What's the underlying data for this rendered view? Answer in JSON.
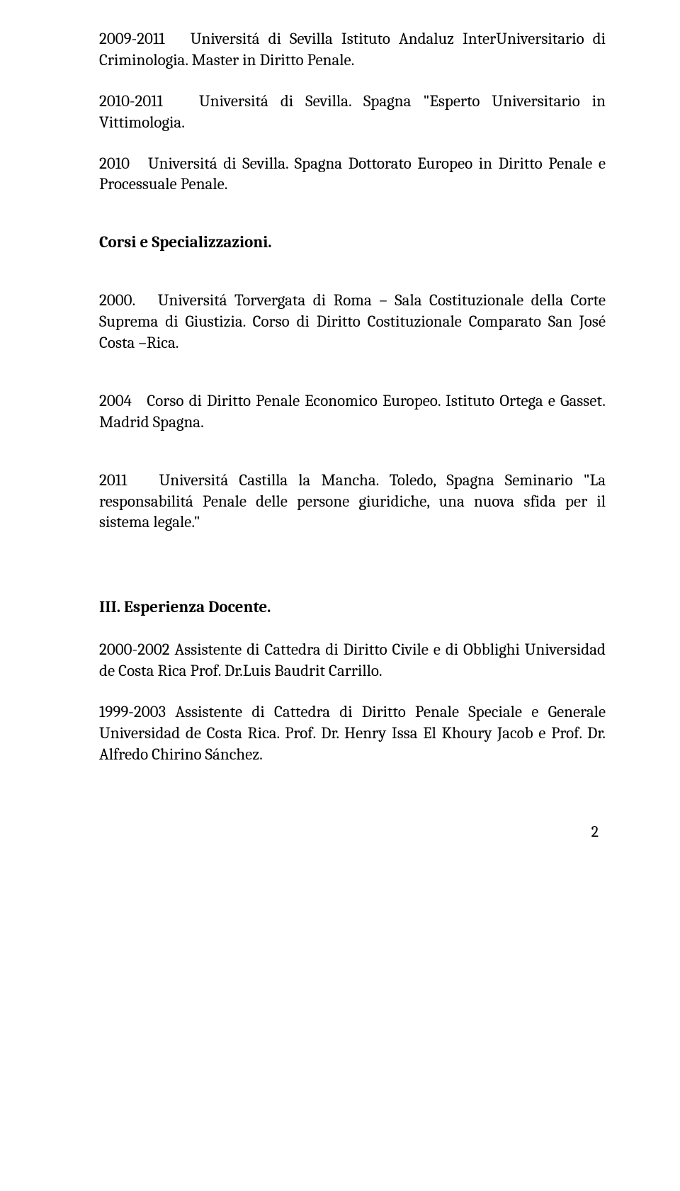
{
  "entries_a": [
    {
      "year": "2009-2011",
      "text": "Universitá di Sevilla Istituto Andaluz InterUniversitario di Criminologia. Master in Diritto Penale."
    },
    {
      "year": "2010-2011",
      "text": "Universitá di Sevilla. Spagna \"Esperto Universitario in Vittimologia."
    },
    {
      "year": "2010",
      "text": "Universitá di Sevilla. Spagna Dottorato Europeo in Diritto Penale e Processuale Penale."
    }
  ],
  "section_b_title": "Corsi e Specializzazioni.",
  "entries_b": [
    {
      "year": "2000.",
      "text": "Universitá Torvergata di Roma – Sala Costituzionale della Corte Suprema di Giustizia. Corso di Diritto Costituzionale Comparato San José Costa –Rica."
    },
    {
      "year": "2004",
      "text": "Corso di Diritto Penale Economico Europeo. Istituto Ortega e Gasset. Madrid Spagna."
    },
    {
      "year": "2011",
      "text": "Universitá Castilla la Mancha. Toledo, Spagna Seminario \"La responsabilitá Penale delle persone giuridiche, una nuova sfida per il sistema legale.\""
    }
  ],
  "section_c_title": "III. Esperienza Docente.",
  "paras_c": [
    "2000-2002 Assistente di Cattedra di Diritto Civile e di Obblighi Universidad de Costa Rica Prof. Dr.Luis Baudrit Carrillo.",
    "1999-2003 Assistente di Cattedra di Diritto Penale Speciale e Generale Universidad de Costa Rica. Prof. Dr. Henry Issa El Khoury Jacob e Prof. Dr. Alfredo Chirino Sánchez."
  ],
  "page_number": "2"
}
